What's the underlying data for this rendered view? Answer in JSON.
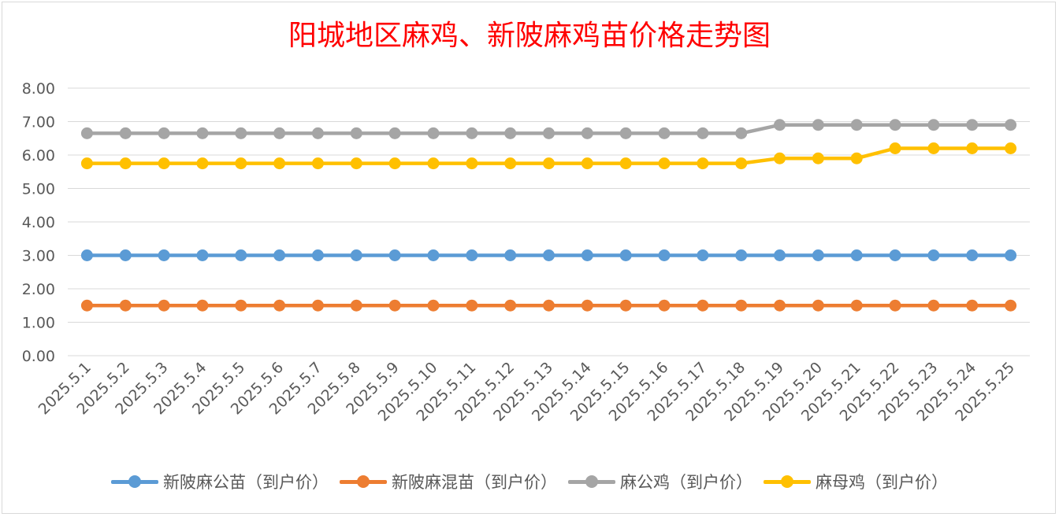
{
  "chart_data": {
    "type": "line",
    "title": "阳城地区麻鸡、新陂麻鸡苗价格走势图",
    "xlabel": "",
    "ylabel": "",
    "ylim": [
      0,
      8
    ],
    "yticks": [
      "0.00",
      "1.00",
      "2.00",
      "3.00",
      "4.00",
      "5.00",
      "6.00",
      "7.00",
      "8.00"
    ],
    "grid": true,
    "legend_position": "bottom",
    "categories": [
      "2025.5.1",
      "2025.5.2",
      "2025.5.3",
      "2025.5.4",
      "2025.5.5",
      "2025.5.6",
      "2025.5.7",
      "2025.5.8",
      "2025.5.9",
      "2025.5.10",
      "2025.5.11",
      "2025.5.12",
      "2025.5.13",
      "2025.5.14",
      "2025.5.15",
      "2025.5.16",
      "2025.5.17",
      "2025.5.18",
      "2025.5.19",
      "2025.5.20",
      "2025.5.21",
      "2025.5.22",
      "2025.5.23",
      "2025.5.24",
      "2025.5.25"
    ],
    "series": [
      {
        "name": "新陂麻公苗（到户价）",
        "color": "#5b9bd5",
        "values": [
          3.0,
          3.0,
          3.0,
          3.0,
          3.0,
          3.0,
          3.0,
          3.0,
          3.0,
          3.0,
          3.0,
          3.0,
          3.0,
          3.0,
          3.0,
          3.0,
          3.0,
          3.0,
          3.0,
          3.0,
          3.0,
          3.0,
          3.0,
          3.0,
          3.0
        ]
      },
      {
        "name": "新陂麻混苗（到户价）",
        "color": "#ed7d31",
        "values": [
          1.5,
          1.5,
          1.5,
          1.5,
          1.5,
          1.5,
          1.5,
          1.5,
          1.5,
          1.5,
          1.5,
          1.5,
          1.5,
          1.5,
          1.5,
          1.5,
          1.5,
          1.5,
          1.5,
          1.5,
          1.5,
          1.5,
          1.5,
          1.5,
          1.5
        ]
      },
      {
        "name": "麻公鸡（到户价）",
        "color": "#a5a5a5",
        "values": [
          6.65,
          6.65,
          6.65,
          6.65,
          6.65,
          6.65,
          6.65,
          6.65,
          6.65,
          6.65,
          6.65,
          6.65,
          6.65,
          6.65,
          6.65,
          6.65,
          6.65,
          6.65,
          6.9,
          6.9,
          6.9,
          6.9,
          6.9,
          6.9,
          6.9
        ]
      },
      {
        "name": "麻母鸡（到户价）",
        "color": "#ffc000",
        "values": [
          5.75,
          5.75,
          5.75,
          5.75,
          5.75,
          5.75,
          5.75,
          5.75,
          5.75,
          5.75,
          5.75,
          5.75,
          5.75,
          5.75,
          5.75,
          5.75,
          5.75,
          5.75,
          5.9,
          5.9,
          5.9,
          6.2,
          6.2,
          6.2,
          6.2
        ]
      }
    ]
  }
}
